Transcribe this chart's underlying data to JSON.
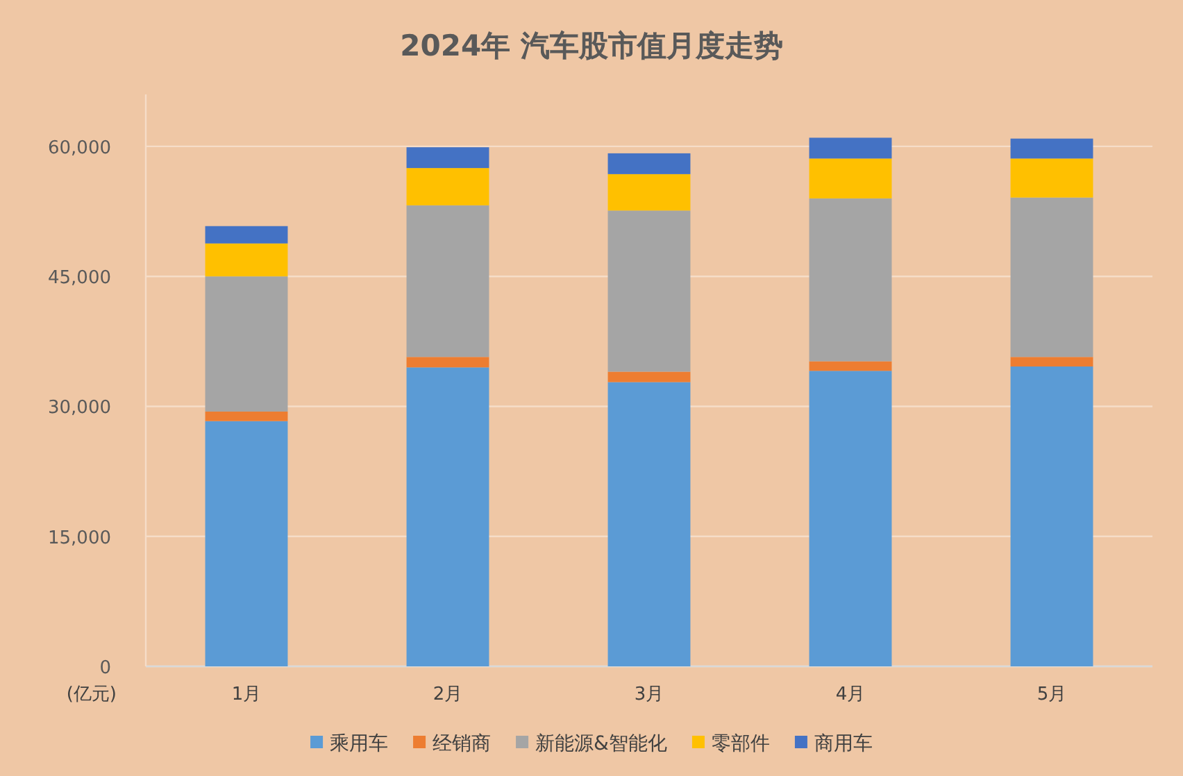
{
  "chart_data": {
    "type": "bar",
    "title": "2024年 汽车股市值月度走势",
    "ylabel": "(亿元)",
    "categories": [
      "1月",
      "2月",
      "3月",
      "4月",
      "5月"
    ],
    "stacked": true,
    "grid": "y",
    "legend": "bottom",
    "ylim": [
      0,
      66000
    ],
    "yticks": [
      0,
      {
        "value": 15000,
        "label": "15,000"
      },
      {
        "value": 30000,
        "label": "30,000"
      },
      {
        "value": 45000,
        "label": "45,000"
      },
      {
        "value": 60000,
        "label": "60,000"
      }
    ],
    "series": [
      {
        "name": "乘用车",
        "color": "#5b9bd5",
        "values": [
          28300,
          34500,
          32800,
          34100,
          34600
        ]
      },
      {
        "name": "经销商",
        "color": "#ed7d31",
        "values": [
          1100,
          1200,
          1200,
          1100,
          1100
        ]
      },
      {
        "name": "新能源&智能化",
        "color": "#a5a5a5",
        "values": [
          15600,
          17500,
          18600,
          18800,
          18400
        ]
      },
      {
        "name": "零部件",
        "color": "#ffc000",
        "values": [
          3800,
          4300,
          4200,
          4600,
          4500
        ]
      },
      {
        "name": "商用车",
        "color": "#4472c4",
        "values": [
          2000,
          2400,
          2400,
          2400,
          2300
        ]
      }
    ]
  }
}
